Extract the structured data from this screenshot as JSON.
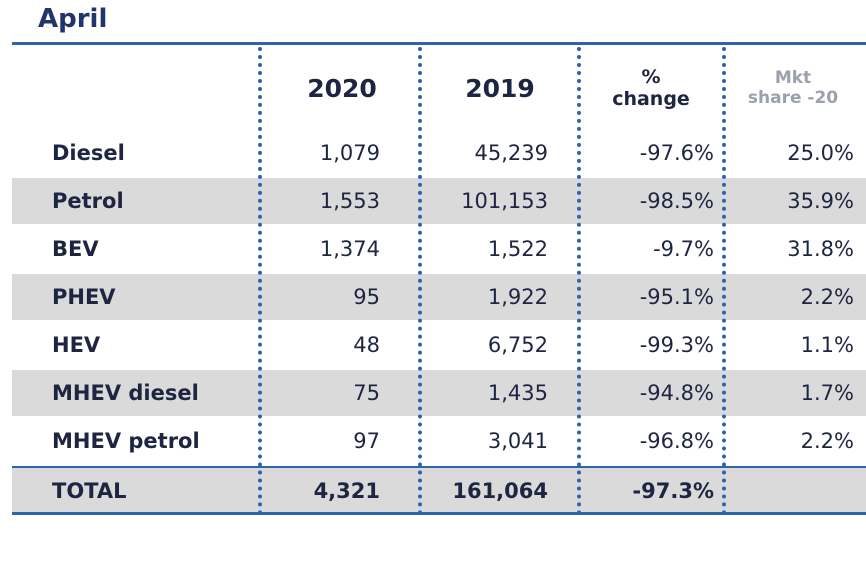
{
  "title": "April",
  "columns": {
    "c2020": "2020",
    "c2019": "2019",
    "pct_line1": "%",
    "pct_line2": "change",
    "mkt_line1": "Mkt",
    "mkt_line2": "share -20"
  },
  "chart_data": {
    "type": "table",
    "title": "April",
    "headers": [
      "",
      "2020",
      "2019",
      "% change",
      "Mkt share -20"
    ],
    "rows": [
      {
        "label": "Diesel",
        "v2020": "1,079",
        "v2019": "45,239",
        "pct": "-97.6%",
        "mkt": "25.0%"
      },
      {
        "label": "Petrol",
        "v2020": "1,553",
        "v2019": "101,153",
        "pct": "-98.5%",
        "mkt": "35.9%"
      },
      {
        "label": "BEV",
        "v2020": "1,374",
        "v2019": "1,522",
        "pct": "-9.7%",
        "mkt": "31.8%"
      },
      {
        "label": "PHEV",
        "v2020": "95",
        "v2019": "1,922",
        "pct": "-95.1%",
        "mkt": "2.2%"
      },
      {
        "label": "HEV",
        "v2020": "48",
        "v2019": "6,752",
        "pct": "-99.3%",
        "mkt": "1.1%"
      },
      {
        "label": "MHEV diesel",
        "v2020": "75",
        "v2019": "1,435",
        "pct": "-94.8%",
        "mkt": "1.7%"
      },
      {
        "label": "MHEV petrol",
        "v2020": "97",
        "v2019": "3,041",
        "pct": "-96.8%",
        "mkt": "2.2%"
      }
    ],
    "total": {
      "label": "TOTAL",
      "v2020": "4,321",
      "v2019": "161,064",
      "pct": "-97.3%",
      "mkt": ""
    }
  },
  "colors": {
    "accent": "#2f63ad",
    "title": "#22356b",
    "text": "#1d2540",
    "shade": "#dadada",
    "muted_header": "#9ba1ab"
  }
}
